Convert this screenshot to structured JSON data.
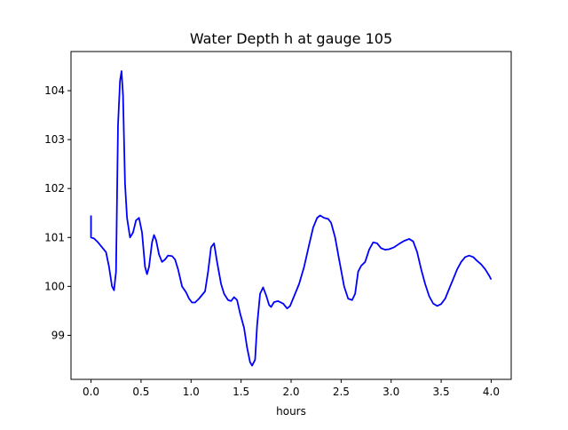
{
  "chart_data": {
    "type": "line",
    "title": "Water Depth h at gauge 105",
    "xlabel": "hours",
    "ylabel": "",
    "xlim": [
      -0.2,
      4.2
    ],
    "ylim": [
      98.1,
      104.8
    ],
    "x_ticks": [
      0.0,
      0.5,
      1.0,
      1.5,
      2.0,
      2.5,
      3.0,
      3.5,
      4.0
    ],
    "x_tick_labels": [
      "0.0",
      "0.5",
      "1.0",
      "1.5",
      "2.0",
      "2.5",
      "3.0",
      "3.5",
      "4.0"
    ],
    "y_ticks": [
      99,
      100,
      101,
      102,
      103,
      104
    ],
    "y_tick_labels": [
      "99",
      "100",
      "101",
      "102",
      "103",
      "104"
    ],
    "grid": false,
    "series": [
      {
        "color": "#0000ff",
        "points": [
          [
            0.0,
            101.45
          ],
          [
            0.0,
            101.0
          ],
          [
            0.03,
            100.98
          ],
          [
            0.07,
            100.9
          ],
          [
            0.11,
            100.8
          ],
          [
            0.15,
            100.7
          ],
          [
            0.18,
            100.4
          ],
          [
            0.21,
            100.0
          ],
          [
            0.23,
            99.92
          ],
          [
            0.25,
            100.3
          ],
          [
            0.27,
            103.3
          ],
          [
            0.29,
            104.2
          ],
          [
            0.305,
            104.4
          ],
          [
            0.32,
            103.9
          ],
          [
            0.34,
            102.1
          ],
          [
            0.36,
            101.4
          ],
          [
            0.39,
            101.0
          ],
          [
            0.42,
            101.1
          ],
          [
            0.45,
            101.35
          ],
          [
            0.48,
            101.4
          ],
          [
            0.51,
            101.1
          ],
          [
            0.54,
            100.4
          ],
          [
            0.56,
            100.25
          ],
          [
            0.58,
            100.4
          ],
          [
            0.61,
            100.9
          ],
          [
            0.63,
            101.05
          ],
          [
            0.65,
            100.95
          ],
          [
            0.68,
            100.65
          ],
          [
            0.71,
            100.5
          ],
          [
            0.74,
            100.55
          ],
          [
            0.77,
            100.63
          ],
          [
            0.81,
            100.62
          ],
          [
            0.84,
            100.55
          ],
          [
            0.87,
            100.35
          ],
          [
            0.91,
            100.0
          ],
          [
            0.95,
            99.88
          ],
          [
            0.98,
            99.75
          ],
          [
            1.01,
            99.67
          ],
          [
            1.04,
            99.67
          ],
          [
            1.08,
            99.75
          ],
          [
            1.14,
            99.9
          ],
          [
            1.17,
            100.3
          ],
          [
            1.2,
            100.8
          ],
          [
            1.23,
            100.88
          ],
          [
            1.26,
            100.5
          ],
          [
            1.3,
            100.05
          ],
          [
            1.33,
            99.85
          ],
          [
            1.37,
            99.72
          ],
          [
            1.4,
            99.7
          ],
          [
            1.43,
            99.78
          ],
          [
            1.46,
            99.72
          ],
          [
            1.49,
            99.45
          ],
          [
            1.53,
            99.15
          ],
          [
            1.56,
            98.75
          ],
          [
            1.59,
            98.45
          ],
          [
            1.61,
            98.38
          ],
          [
            1.64,
            98.5
          ],
          [
            1.66,
            99.2
          ],
          [
            1.69,
            99.85
          ],
          [
            1.72,
            99.98
          ],
          [
            1.75,
            99.82
          ],
          [
            1.78,
            99.62
          ],
          [
            1.8,
            99.58
          ],
          [
            1.83,
            99.68
          ],
          [
            1.87,
            99.7
          ],
          [
            1.92,
            99.65
          ],
          [
            1.96,
            99.55
          ],
          [
            1.99,
            99.6
          ],
          [
            2.03,
            99.8
          ],
          [
            2.08,
            100.05
          ],
          [
            2.13,
            100.4
          ],
          [
            2.18,
            100.85
          ],
          [
            2.22,
            101.2
          ],
          [
            2.26,
            101.4
          ],
          [
            2.29,
            101.45
          ],
          [
            2.33,
            101.4
          ],
          [
            2.37,
            101.38
          ],
          [
            2.4,
            101.3
          ],
          [
            2.44,
            101.0
          ],
          [
            2.48,
            100.55
          ],
          [
            2.53,
            100.0
          ],
          [
            2.57,
            99.75
          ],
          [
            2.61,
            99.72
          ],
          [
            2.64,
            99.85
          ],
          [
            2.67,
            100.3
          ],
          [
            2.7,
            100.42
          ],
          [
            2.74,
            100.5
          ],
          [
            2.78,
            100.75
          ],
          [
            2.82,
            100.9
          ],
          [
            2.86,
            100.88
          ],
          [
            2.9,
            100.78
          ],
          [
            2.94,
            100.75
          ],
          [
            2.98,
            100.76
          ],
          [
            3.03,
            100.8
          ],
          [
            3.08,
            100.87
          ],
          [
            3.13,
            100.93
          ],
          [
            3.18,
            100.97
          ],
          [
            3.22,
            100.92
          ],
          [
            3.26,
            100.7
          ],
          [
            3.3,
            100.35
          ],
          [
            3.34,
            100.05
          ],
          [
            3.38,
            99.8
          ],
          [
            3.42,
            99.65
          ],
          [
            3.46,
            99.6
          ],
          [
            3.5,
            99.64
          ],
          [
            3.54,
            99.75
          ],
          [
            3.58,
            99.95
          ],
          [
            3.62,
            100.15
          ],
          [
            3.66,
            100.35
          ],
          [
            3.7,
            100.5
          ],
          [
            3.74,
            100.6
          ],
          [
            3.78,
            100.63
          ],
          [
            3.82,
            100.6
          ],
          [
            3.86,
            100.52
          ],
          [
            3.9,
            100.45
          ],
          [
            3.94,
            100.35
          ],
          [
            3.98,
            100.22
          ],
          [
            4.0,
            100.14
          ]
        ]
      }
    ]
  }
}
